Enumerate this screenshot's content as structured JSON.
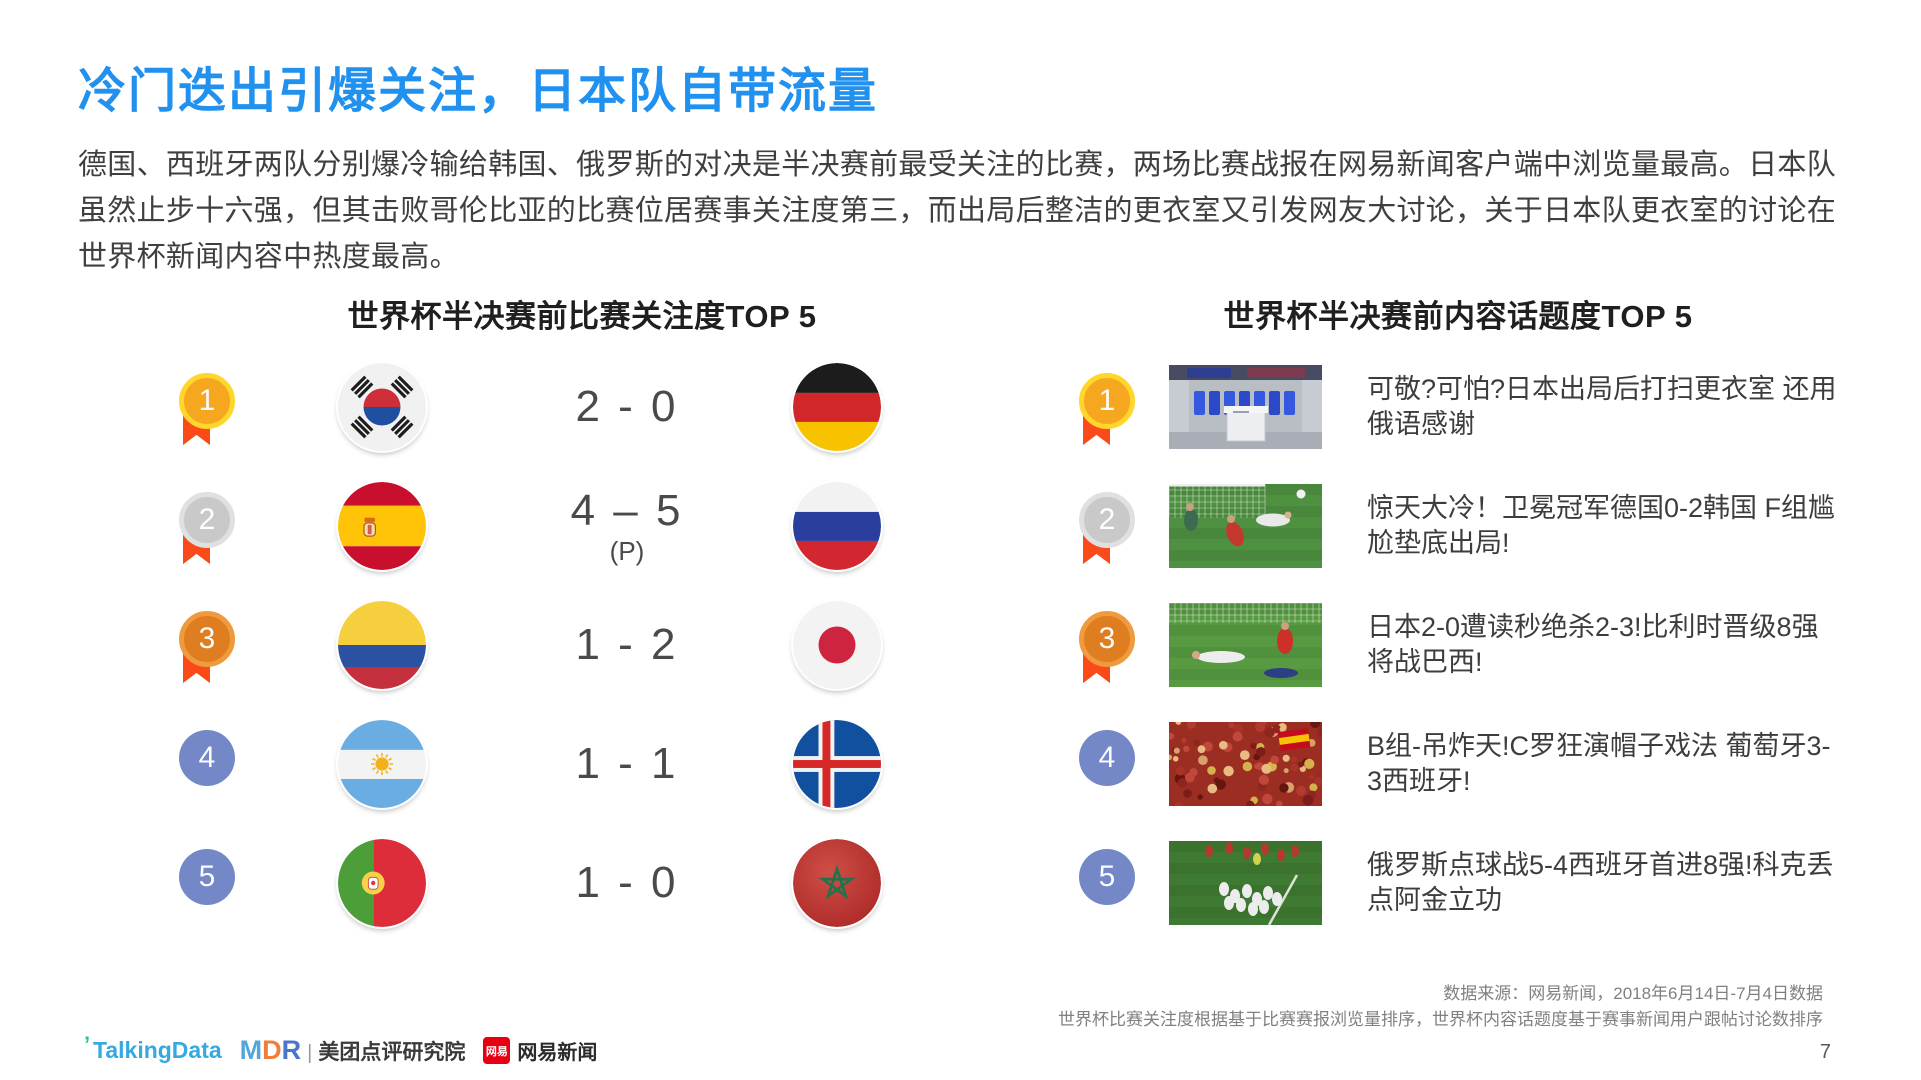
{
  "page": {
    "title": "冷门迭出引爆关注，日本队自带流量",
    "paragraph": "德国、西班牙两队分别爆冷输给韩国、俄罗斯的对决是半决赛前最受关注的比赛，两场比赛战报在网易新闻客户端中浏览量最高。日本队虽然止步十六强，但其击败哥伦比亚的比赛位居赛事关注度第三，而出局后整洁的更衣室又引发网友大讨论，关于日本队更衣室的讨论在世界杯新闻内容中热度最高。",
    "page_number": "7"
  },
  "left_section": {
    "heading": "世界杯半决赛前比赛关注度TOP 5",
    "rows": [
      {
        "rank": "1",
        "medal": "gold",
        "team_left": "south-korea",
        "score": "2 - 0",
        "score_note": "",
        "team_right": "germany"
      },
      {
        "rank": "2",
        "medal": "silver",
        "team_left": "spain",
        "score": "4 – 5",
        "score_note": "(P)",
        "team_right": "russia"
      },
      {
        "rank": "3",
        "medal": "bronze",
        "team_left": "colombia",
        "score": "1 - 2",
        "score_note": "",
        "team_right": "japan"
      },
      {
        "rank": "4",
        "medal": "plain",
        "team_left": "argentina",
        "score": "1 - 1",
        "score_note": "",
        "team_right": "iceland"
      },
      {
        "rank": "5",
        "medal": "plain",
        "team_left": "portugal",
        "score": "1 - 0",
        "score_note": "",
        "team_right": "morocco"
      }
    ]
  },
  "right_section": {
    "heading": "世界杯半决赛前内容话题度TOP 5",
    "rows": [
      {
        "rank": "1",
        "medal": "gold",
        "thumbnail": "locker-room-photo",
        "text": "可敬?可怕?日本出局后打扫更衣室 还用俄语感谢"
      },
      {
        "rank": "2",
        "medal": "silver",
        "thumbnail": "goalmouth-scramble-photo",
        "text": "惊天大冷！卫冕冠军德国0-2韩国 F组尴尬垫底出局!"
      },
      {
        "rank": "3",
        "medal": "bronze",
        "thumbnail": "players-on-pitch-photo",
        "text": "日本2-0遭读秒绝杀2-3!比利时晋级8强将战巴西!"
      },
      {
        "rank": "4",
        "medal": "plain",
        "thumbnail": "red-crowd-photo",
        "text": "B组-吊炸天!C罗狂演帽子戏法 葡萄牙3-3西班牙!"
      },
      {
        "rank": "5",
        "medal": "plain",
        "thumbnail": "team-celebration-photo",
        "text": "俄罗斯点球战5-4西班牙首进8强!科克丢点阿金立功"
      }
    ]
  },
  "footer": {
    "source_line1": "数据来源：网易新闻，2018年6月14日-7月4日数据",
    "source_line2": "世界杯比赛关注度根据基于比赛赛报浏览量排序，世界杯内容话题度基于赛事新闻用户跟帖讨论数排序",
    "logos": {
      "talkingdata": "TalkingData",
      "mdr_m": "M",
      "mdr_d": "D",
      "mdr_r": "R",
      "mdr_text": "美团点评研究院",
      "netease_badge": "网易",
      "netease": "网易新闻"
    }
  },
  "colors": {
    "title_blue": "#2191F0",
    "body_text": "#3F3F3F",
    "medal_gold": "#F6A720",
    "medal_gold_ring": "#FFD62B",
    "medal_silver": "#C9C9C9",
    "medal_silver_ring": "#E0E0E0",
    "medal_bronze": "#DE7E20",
    "medal_bronze_ring": "#EF9A3D",
    "rank_blue": "#7488C8",
    "ribbon_orange": "#FB4A1A"
  }
}
